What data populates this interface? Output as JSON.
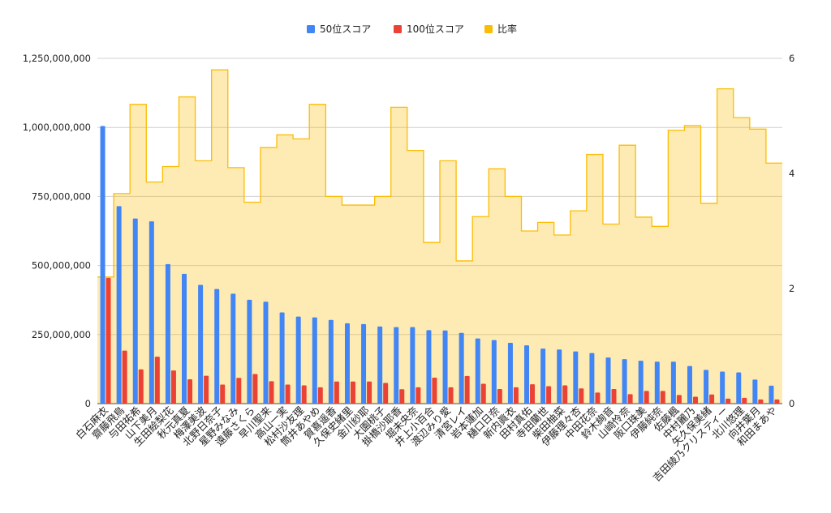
{
  "chart_data": {
    "type": "bar",
    "title": "",
    "xlabel": "",
    "ylabel": "",
    "ylim": [
      0,
      1250000000
    ],
    "y2lim": [
      0,
      6
    ],
    "y_ticks": [
      "0",
      "250,000,000",
      "500,000,000",
      "750,000,000",
      "1,000,000,000",
      "1,250,000,000"
    ],
    "y2_ticks": [
      "0",
      "2",
      "4",
      "6"
    ],
    "grid": true,
    "legend_position": "top",
    "categories": [
      "白石麻衣",
      "齋藤飛鳥",
      "与田祐希",
      "山下美月",
      "生田絵梨花",
      "秋元真夏",
      "梅澤美波",
      "北野日奈子",
      "星野みなみ",
      "遠藤さくら",
      "早川聖来",
      "高山一実",
      "松村沙友理",
      "筒井あやめ",
      "賀喜遥香",
      "久保史緒里",
      "金川紗耶",
      "大園桃子",
      "掛橋沙耶香",
      "堀未央奈",
      "井上小百合",
      "渡辺みり愛",
      "清宮レイ",
      "岩本蓮加",
      "樋口日奈",
      "新内眞衣",
      "田村真佑",
      "寺田蘭世",
      "柴田柚菜",
      "伊藤理々杏",
      "中田花奈",
      "鈴木絢音",
      "山崎怜奈",
      "阪口珠美",
      "伊藤純奈",
      "佐藤楓",
      "中村麗乃",
      "矢久保美緒",
      "吉田綾乃クリスティー",
      "北川悠理",
      "向井葉月",
      "和田まあや"
    ],
    "series": [
      {
        "name": "50位スコア",
        "color": "#4285f4",
        "axis": "left",
        "values": [
          1005000000,
          715000000,
          670000000,
          660000000,
          505000000,
          470000000,
          430000000,
          415000000,
          398000000,
          376000000,
          369000000,
          330000000,
          315000000,
          312000000,
          303000000,
          291000000,
          288000000,
          279000000,
          277000000,
          277000000,
          266000000,
          265000000,
          256000000,
          236000000,
          230000000,
          220000000,
          211000000,
          199000000,
          196000000,
          189000000,
          183000000,
          167000000,
          161000000,
          155000000,
          152000000,
          152000000,
          136000000,
          122000000,
          116000000,
          113000000,
          87000000,
          65000000
        ]
      },
      {
        "name": "100位スコア",
        "color": "#ea4335",
        "axis": "left",
        "values": [
          455000000,
          192000000,
          124000000,
          170000000,
          120000000,
          88000000,
          101000000,
          69000000,
          93000000,
          107000000,
          81000000,
          69000000,
          66000000,
          59000000,
          80000000,
          80000000,
          80000000,
          75000000,
          52000000,
          59000000,
          94000000,
          59000000,
          100000000,
          72000000,
          53000000,
          59000000,
          70000000,
          63000000,
          66000000,
          55000000,
          40000000,
          53000000,
          34000000,
          46000000,
          46000000,
          31000000,
          25000000,
          33000000,
          18000000,
          21000000,
          15000000,
          15000000
        ]
      },
      {
        "name": "比率",
        "color": "#fbbc04",
        "axis": "right",
        "values": [
          2.2,
          3.65,
          5.2,
          3.85,
          4.12,
          5.33,
          4.22,
          5.8,
          4.1,
          3.5,
          4.45,
          4.67,
          4.6,
          5.2,
          3.6,
          3.45,
          3.45,
          3.6,
          5.15,
          4.4,
          2.8,
          4.22,
          2.48,
          3.25,
          4.08,
          3.6,
          3.0,
          3.15,
          2.93,
          3.35,
          4.33,
          3.12,
          4.49,
          3.24,
          3.08,
          4.75,
          4.83,
          3.48,
          5.47,
          4.97,
          4.77,
          4.18
        ]
      }
    ]
  }
}
